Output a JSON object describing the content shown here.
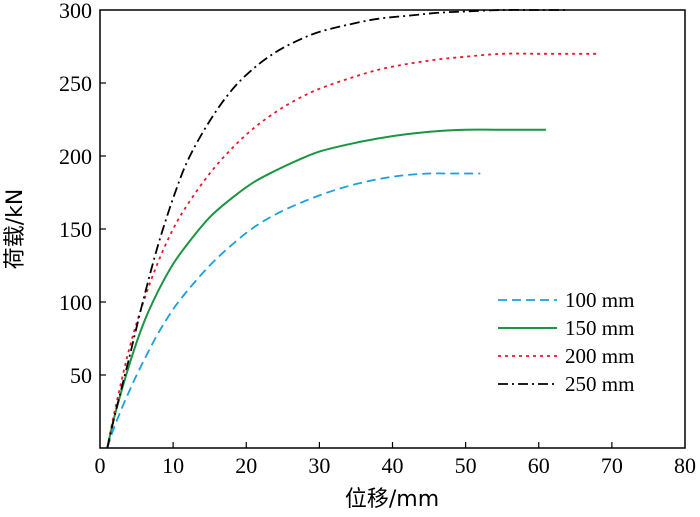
{
  "chart_data": {
    "type": "line",
    "xlabel": "位移/mm",
    "ylabel": "荷载/kN",
    "xlim": [
      0,
      80
    ],
    "ylim": [
      0,
      300
    ],
    "xticks": [
      0,
      10,
      20,
      30,
      40,
      50,
      60,
      70,
      80
    ],
    "yticks": [
      50,
      100,
      150,
      200,
      250,
      300
    ],
    "grid": false,
    "legend": "right",
    "series": [
      {
        "name": "100 mm",
        "color": "#1aa0dc",
        "dash": "dashed",
        "x": [
          1,
          2,
          4,
          6,
          8,
          10,
          12,
          15,
          18,
          21,
          24,
          27,
          30,
          33,
          36,
          39,
          42,
          45,
          48,
          50,
          52
        ],
        "y": [
          0,
          15,
          39,
          60,
          79,
          95,
          108,
          125,
          139,
          151,
          160,
          167,
          173,
          178,
          182,
          185,
          187,
          188,
          188,
          188,
          188
        ]
      },
      {
        "name": "150 mm",
        "color": "#1a9641",
        "dash": "solid",
        "x": [
          1,
          2,
          4,
          6,
          8,
          10,
          12,
          15,
          18,
          21,
          24,
          27,
          30,
          34,
          38,
          42,
          46,
          50,
          54,
          58,
          61
        ],
        "y": [
          0,
          22,
          57,
          86,
          108,
          126,
          140,
          158,
          171,
          182,
          190,
          197,
          203,
          208,
          212,
          215,
          217,
          218,
          218,
          218,
          218
        ]
      },
      {
        "name": "200 mm",
        "color": "#e8182c",
        "dash": "dotted",
        "x": [
          1,
          2,
          4,
          6,
          8,
          10,
          12,
          15,
          18,
          21,
          24,
          27,
          30,
          34,
          38,
          42,
          46,
          50,
          55,
          60,
          65,
          68
        ],
        "y": [
          0,
          25,
          68,
          101,
          128,
          150,
          167,
          188,
          205,
          219,
          230,
          239,
          246,
          253,
          259,
          263,
          266,
          268,
          270,
          270,
          270,
          270
        ]
      },
      {
        "name": "250 mm",
        "color": "#000000",
        "dash": "dash-dot",
        "x": [
          1,
          2,
          4,
          6,
          8,
          10,
          12,
          15,
          18,
          21,
          24,
          27,
          30,
          34,
          38,
          42,
          46,
          50,
          55,
          60,
          64
        ],
        "y": [
          0,
          22,
          62,
          103,
          140,
          171,
          197,
          224,
          245,
          260,
          271,
          279,
          285,
          290,
          294,
          296,
          298,
          299,
          300,
          300,
          300
        ]
      }
    ]
  }
}
